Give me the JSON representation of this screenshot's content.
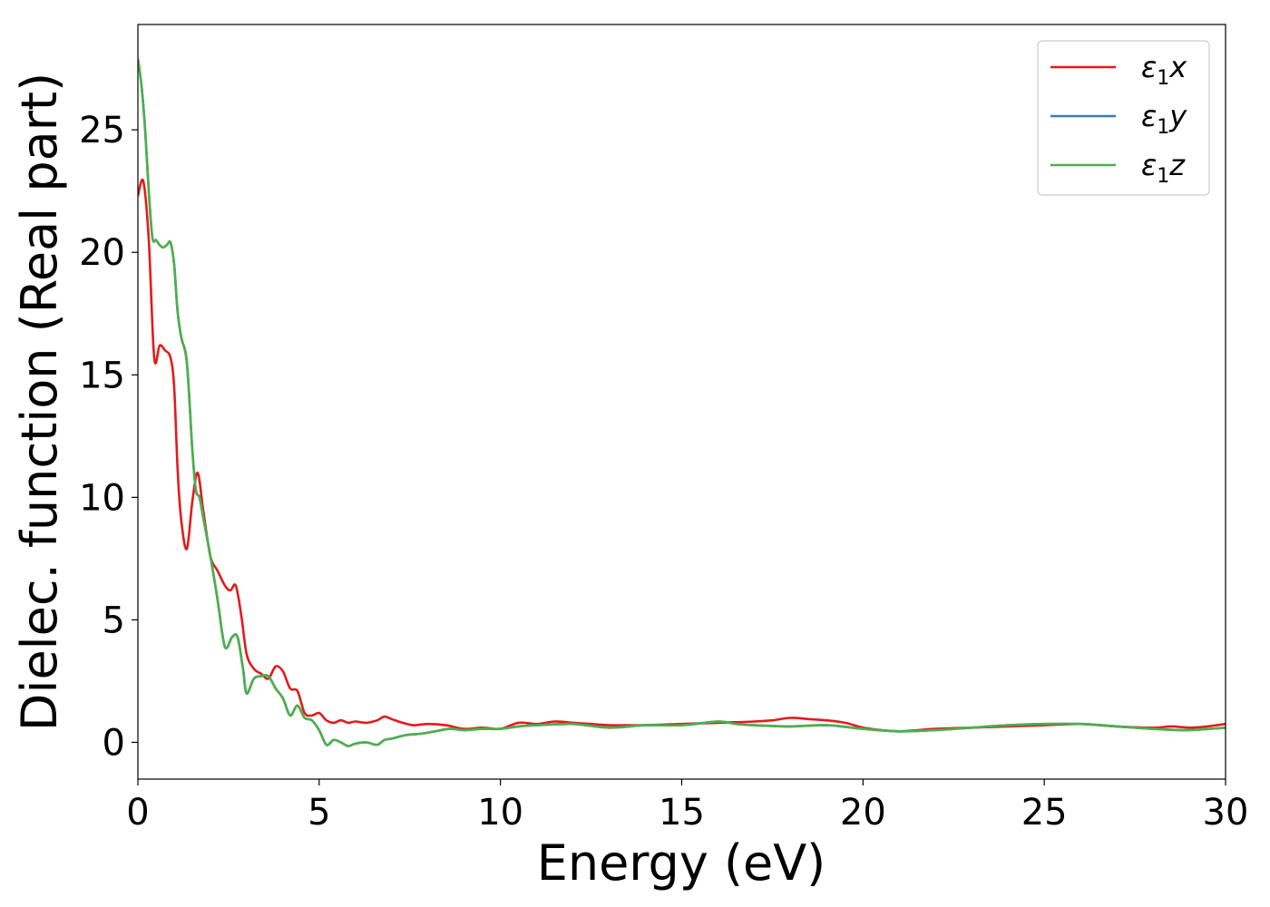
{
  "chart_data": {
    "type": "line",
    "xlabel": "Energy (eV)",
    "ylabel": "Dielec. function (Real part)",
    "xlim": [
      0,
      30
    ],
    "ylim": [
      -1.5,
      29.3
    ],
    "xticks": [
      0,
      5,
      10,
      15,
      20,
      25,
      30
    ],
    "yticks": [
      0,
      5,
      10,
      15,
      20,
      25
    ],
    "grid": false,
    "legend_position": "top-right",
    "series": [
      {
        "name": "ε1x",
        "legend_base": "ε",
        "legend_sub": "1",
        "legend_var": "x",
        "color": "#e41a1c",
        "x": [
          0,
          0.15,
          0.3,
          0.45,
          0.6,
          0.75,
          0.9,
          1.0,
          1.1,
          1.2,
          1.35,
          1.5,
          1.65,
          1.8,
          2.0,
          2.2,
          2.4,
          2.55,
          2.7,
          2.85,
          3.0,
          3.2,
          3.4,
          3.6,
          3.8,
          4.0,
          4.2,
          4.4,
          4.6,
          4.8,
          5.0,
          5.2,
          5.4,
          5.6,
          5.8,
          6.0,
          6.3,
          6.6,
          6.8,
          7.0,
          7.3,
          7.6,
          8.0,
          8.5,
          9.0,
          9.5,
          10.0,
          10.5,
          11.0,
          11.5,
          12.0,
          12.5,
          13.0,
          13.5,
          14.0,
          15.0,
          16.0,
          17.0,
          17.5,
          18.0,
          18.5,
          19.0,
          19.5,
          20.0,
          20.5,
          21.0,
          21.5,
          22.0,
          23.0,
          24.0,
          25.0,
          26.0,
          27.0,
          28.0,
          28.5,
          29.0,
          29.5,
          30.0
        ],
        "y": [
          22.3,
          22.9,
          20.5,
          15.7,
          16.2,
          16.0,
          15.7,
          14.5,
          11.0,
          9.0,
          7.9,
          9.8,
          11.0,
          9.5,
          7.6,
          7.0,
          6.4,
          6.2,
          6.4,
          5.2,
          3.6,
          3.0,
          2.8,
          2.6,
          3.1,
          2.9,
          2.2,
          2.1,
          1.2,
          1.1,
          1.2,
          0.9,
          0.8,
          0.9,
          0.8,
          0.85,
          0.8,
          0.9,
          1.05,
          0.95,
          0.8,
          0.7,
          0.75,
          0.7,
          0.55,
          0.6,
          0.55,
          0.8,
          0.75,
          0.85,
          0.8,
          0.75,
          0.7,
          0.7,
          0.7,
          0.75,
          0.8,
          0.85,
          0.9,
          1.0,
          0.95,
          0.9,
          0.8,
          0.6,
          0.5,
          0.45,
          0.5,
          0.55,
          0.6,
          0.65,
          0.7,
          0.75,
          0.65,
          0.6,
          0.65,
          0.6,
          0.65,
          0.75
        ]
      },
      {
        "name": "ε1y",
        "legend_base": "ε",
        "legend_sub": "1",
        "legend_var": "y",
        "color": "#377eb8",
        "x": [
          0,
          0.1,
          0.2,
          0.3,
          0.4,
          0.5,
          0.6,
          0.7,
          0.8,
          0.9,
          1.0,
          1.1,
          1.2,
          1.35,
          1.5,
          1.6,
          1.7,
          1.8,
          2.0,
          2.2,
          2.4,
          2.6,
          2.75,
          2.9,
          3.0,
          3.2,
          3.4,
          3.6,
          3.8,
          4.0,
          4.2,
          4.4,
          4.6,
          4.8,
          5.0,
          5.2,
          5.4,
          5.6,
          5.8,
          6.0,
          6.3,
          6.6,
          6.8,
          7.0,
          7.4,
          7.8,
          8.2,
          8.6,
          9.0,
          9.5,
          10.0,
          10.5,
          11.0,
          12.0,
          13.0,
          14.0,
          15.0,
          16.0,
          16.5,
          17.0,
          18.0,
          19.0,
          20.0,
          21.0,
          22.0,
          23.0,
          24.0,
          25.0,
          26.0,
          27.0,
          28.0,
          29.0,
          30.0
        ],
        "y": [
          27.9,
          26.8,
          25.0,
          22.5,
          20.6,
          20.5,
          20.3,
          20.2,
          20.3,
          20.4,
          19.5,
          17.5,
          16.5,
          15.5,
          12.0,
          10.3,
          10.0,
          9.2,
          7.6,
          5.8,
          3.9,
          4.3,
          4.3,
          3.0,
          2.0,
          2.6,
          2.7,
          2.7,
          2.2,
          1.8,
          1.1,
          1.5,
          1.0,
          0.9,
          0.5,
          -0.1,
          0.1,
          0.0,
          -0.15,
          -0.05,
          0.0,
          -0.1,
          0.1,
          0.15,
          0.3,
          0.35,
          0.45,
          0.55,
          0.5,
          0.55,
          0.55,
          0.65,
          0.7,
          0.75,
          0.6,
          0.7,
          0.7,
          0.85,
          0.75,
          0.7,
          0.65,
          0.7,
          0.55,
          0.45,
          0.5,
          0.6,
          0.7,
          0.75,
          0.75,
          0.65,
          0.55,
          0.5,
          0.6
        ]
      },
      {
        "name": "ε1z",
        "legend_base": "ε",
        "legend_sub": "1",
        "legend_var": "z",
        "color": "#4daf4a",
        "x": [
          0,
          0.1,
          0.2,
          0.3,
          0.4,
          0.5,
          0.6,
          0.7,
          0.8,
          0.9,
          1.0,
          1.1,
          1.2,
          1.35,
          1.5,
          1.6,
          1.7,
          1.8,
          2.0,
          2.2,
          2.4,
          2.6,
          2.75,
          2.9,
          3.0,
          3.2,
          3.4,
          3.6,
          3.8,
          4.0,
          4.2,
          4.4,
          4.6,
          4.8,
          5.0,
          5.2,
          5.4,
          5.6,
          5.8,
          6.0,
          6.3,
          6.6,
          6.8,
          7.0,
          7.4,
          7.8,
          8.2,
          8.6,
          9.0,
          9.5,
          10.0,
          10.5,
          11.0,
          12.0,
          13.0,
          14.0,
          15.0,
          16.0,
          16.5,
          17.0,
          18.0,
          19.0,
          20.0,
          21.0,
          22.0,
          23.0,
          24.0,
          25.0,
          26.0,
          27.0,
          28.0,
          29.0,
          30.0
        ],
        "y": [
          27.9,
          26.8,
          25.0,
          22.5,
          20.6,
          20.5,
          20.3,
          20.2,
          20.3,
          20.4,
          19.5,
          17.5,
          16.5,
          15.5,
          12.0,
          10.3,
          10.0,
          9.2,
          7.6,
          5.8,
          3.9,
          4.3,
          4.3,
          3.0,
          2.0,
          2.6,
          2.7,
          2.7,
          2.2,
          1.8,
          1.1,
          1.5,
          1.0,
          0.9,
          0.5,
          -0.1,
          0.1,
          0.0,
          -0.15,
          -0.05,
          0.0,
          -0.1,
          0.1,
          0.15,
          0.3,
          0.35,
          0.45,
          0.55,
          0.5,
          0.55,
          0.55,
          0.65,
          0.7,
          0.75,
          0.6,
          0.7,
          0.7,
          0.85,
          0.75,
          0.7,
          0.65,
          0.7,
          0.55,
          0.45,
          0.5,
          0.6,
          0.7,
          0.75,
          0.75,
          0.65,
          0.55,
          0.5,
          0.6
        ]
      }
    ]
  }
}
